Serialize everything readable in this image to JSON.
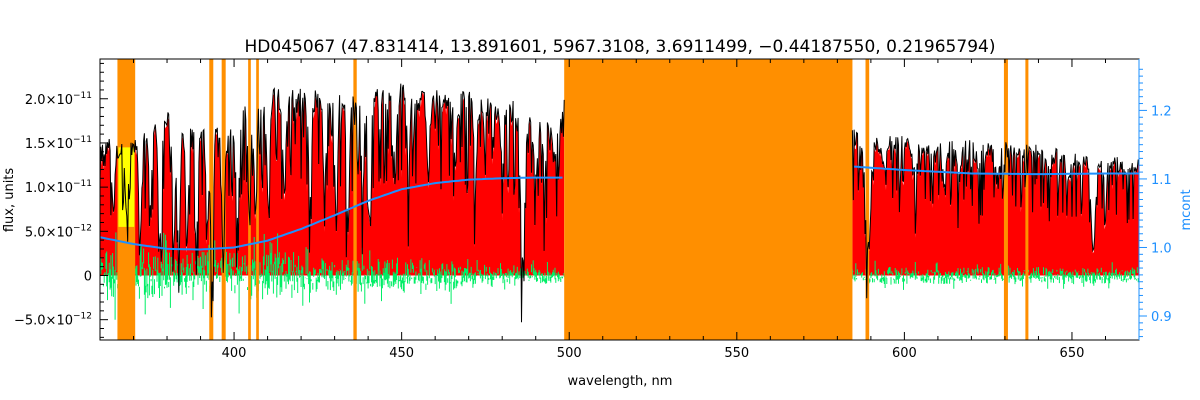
{
  "chart_data": {
    "type": "line",
    "title": "HD045067    (47.831414, 13.891601, 5967.3108, 3.6911499, −0.44187550, 0.21965794)",
    "xlabel": "wavelength, nm",
    "ylabel": "flux, units",
    "y2label": "mcont",
    "xlim": [
      360,
      670
    ],
    "ylim": [
      -7.3e-12,
      2.45e-11
    ],
    "y2lim": [
      0.865,
      1.275
    ],
    "x_ticks": [
      400,
      450,
      500,
      550,
      600,
      650
    ],
    "x_tick_labels": [
      "400",
      "450",
      "500",
      "550",
      "600",
      "650"
    ],
    "y_ticks": [
      -5e-12,
      0,
      5e-12,
      1e-11,
      1.5e-11,
      2e-11
    ],
    "y_tick_labels": [
      {
        "mant": "−5.0×10",
        "exp": "−12"
      },
      {
        "mant": "0",
        "exp": ""
      },
      {
        "mant": "5.0×10",
        "exp": "−12"
      },
      {
        "mant": "1.0×10",
        "exp": "−11"
      },
      {
        "mant": "1.5×10",
        "exp": "−11"
      },
      {
        "mant": "2.0×10",
        "exp": "−11"
      }
    ],
    "y2_ticks": [
      0.9,
      1.0,
      1.1,
      1.2
    ],
    "y2_tick_labels": [
      "0.9",
      "1.0",
      "1.1",
      "1.2"
    ],
    "grid": false,
    "masked_regions_nm": [
      [
        365.2,
        370.5
      ],
      [
        392.6,
        393.8
      ],
      [
        396.3,
        397.5
      ],
      [
        404.2,
        405.0
      ],
      [
        406.6,
        407.4
      ],
      [
        435.6,
        436.6
      ],
      [
        498.5,
        584.5
      ],
      [
        588.4,
        589.5
      ],
      [
        629.7,
        630.9
      ],
      [
        636.1,
        637.0
      ]
    ],
    "highlight_region_nm": [
      365.5,
      370.2
    ],
    "mcont_curve": {
      "x": [
        360,
        370,
        380,
        390,
        400,
        410,
        420,
        430,
        440,
        450,
        460,
        470,
        480,
        490,
        500,
        585,
        600,
        620,
        640,
        660,
        670
      ],
      "y": [
        1.015,
        1.005,
        0.998,
        0.997,
        1.0,
        1.01,
        1.027,
        1.047,
        1.068,
        1.085,
        1.094,
        1.099,
        1.101,
        1.102,
        1.102,
        1.118,
        1.113,
        1.108,
        1.107,
        1.108,
        1.108
      ]
    },
    "observed_upper_envelope": {
      "x": [
        360,
        363,
        366,
        370,
        375,
        380,
        385,
        390,
        395,
        400,
        405,
        410,
        420,
        430,
        440,
        450,
        460,
        470,
        480,
        490,
        495,
        498.5,
        584.5,
        600,
        620,
        640,
        655,
        660,
        670
      ],
      "y": [
        1.45e-11,
        1.55e-11,
        1.45e-11,
        1.5e-11,
        1.65e-11,
        1.85e-11,
        1.65e-11,
        1.75e-11,
        1.65e-11,
        1.7e-11,
        2e-11,
        2.1e-11,
        2.1e-11,
        2.05e-11,
        2.1e-11,
        2.15e-11,
        2.05e-11,
        2.05e-11,
        1.9e-11,
        1.95e-11,
        1.95e-11,
        1.95e-11,
        1.6e-11,
        1.55e-11,
        1.5e-11,
        1.45e-11,
        1.35e-11,
        1.35e-11,
        1.3e-11
      ]
    },
    "absorption_lines": [
      {
        "x": 364,
        "y": 8e-12
      },
      {
        "x": 368,
        "y": 7e-12
      },
      {
        "x": 372,
        "y": 6e-12
      },
      {
        "x": 375,
        "y": 9e-12
      },
      {
        "x": 378,
        "y": 5e-12
      },
      {
        "x": 382,
        "y": 4e-12
      },
      {
        "x": 383.5,
        "y": 4e-12
      },
      {
        "x": 386,
        "y": 5e-12
      },
      {
        "x": 388.9,
        "y": 6e-12
      },
      {
        "x": 392,
        "y": 6e-12
      },
      {
        "x": 393.4,
        "y": 1.5e-12
      },
      {
        "x": 396.8,
        "y": 2e-12
      },
      {
        "x": 401,
        "y": 7e-12
      },
      {
        "x": 404.6,
        "y": 7e-12
      },
      {
        "x": 406.4,
        "y": 7e-12
      },
      {
        "x": 410.2,
        "y": 8e-12
      },
      {
        "x": 415,
        "y": 1e-11
      },
      {
        "x": 422.7,
        "y": 8e-12
      },
      {
        "x": 427,
        "y": 1e-11
      },
      {
        "x": 430.5,
        "y": 7e-12
      },
      {
        "x": 434,
        "y": 5e-12
      },
      {
        "x": 438.4,
        "y": 1e-11
      },
      {
        "x": 440.5,
        "y": 1.1e-11
      },
      {
        "x": 448,
        "y": 1.2e-11
      },
      {
        "x": 452,
        "y": 1.3e-11
      },
      {
        "x": 458,
        "y": 1.2e-11
      },
      {
        "x": 466,
        "y": 1.3e-11
      },
      {
        "x": 472,
        "y": 1.2e-11
      },
      {
        "x": 480,
        "y": 1.3e-11
      },
      {
        "x": 486.1,
        "y": 2.5e-12
      },
      {
        "x": 490,
        "y": 1.2e-11
      },
      {
        "x": 492.5,
        "y": 1.3e-11
      },
      {
        "x": 495.7,
        "y": 1.4e-11
      },
      {
        "x": 588.9,
        "y": 7e-12
      },
      {
        "x": 589.6,
        "y": 1e-11
      },
      {
        "x": 594,
        "y": 1.25e-11
      },
      {
        "x": 603,
        "y": 1.25e-11
      },
      {
        "x": 612,
        "y": 1.3e-11
      },
      {
        "x": 616.2,
        "y": 1.15e-11
      },
      {
        "x": 622,
        "y": 1.3e-11
      },
      {
        "x": 627.5,
        "y": 1.25e-11
      },
      {
        "x": 643,
        "y": 1.2e-11
      },
      {
        "x": 649.5,
        "y": 1.2e-11
      },
      {
        "x": 656.3,
        "y": 3e-12
      },
      {
        "x": 660,
        "y": 1.2e-11
      },
      {
        "x": 666,
        "y": 1.2e-11
      }
    ],
    "residual_band": {
      "center": 0,
      "halfwidth": 1.4e-12
    }
  },
  "colors": {
    "mask": "#ff8f00",
    "highlight": "#ffff00",
    "model": "#ff0000",
    "observed": "#000000",
    "residuals": "#00ee66",
    "mcont": "#1e90ff",
    "axis": "#000000",
    "right_axis": "#1e90ff"
  }
}
